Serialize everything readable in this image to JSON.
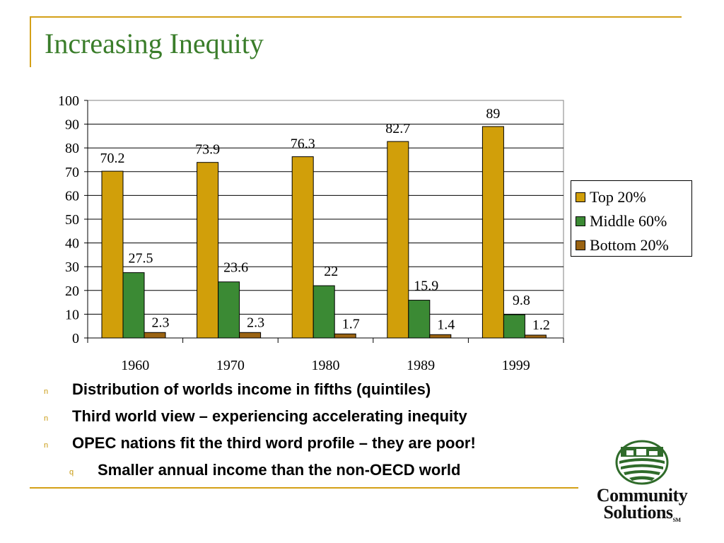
{
  "slide": {
    "title": "Increasing Inequity"
  },
  "colors": {
    "accent_rule": "#d4a017",
    "title": "#3a7d2a",
    "bullet_marker": "#c89a10"
  },
  "chart_data": {
    "type": "bar",
    "categories": [
      "1960",
      "1970",
      "1980",
      "1989",
      "1999"
    ],
    "series": [
      {
        "name": "Top 20%",
        "color": "#d19f0a",
        "values": [
          70.2,
          73.9,
          76.3,
          82.7,
          89
        ]
      },
      {
        "name": "Middle 60%",
        "color": "#3b8a34",
        "values": [
          27.5,
          23.6,
          22,
          15.9,
          9.8
        ]
      },
      {
        "name": "Bottom 20%",
        "color": "#9a6312",
        "values": [
          2.3,
          2.3,
          1.7,
          1.4,
          1.2
        ]
      }
    ],
    "data_labels": [
      [
        "70.2",
        "73.9",
        "76.3",
        "82.7",
        "89"
      ],
      [
        "27.5",
        "23.6",
        "22",
        "15.9",
        "9.8"
      ],
      [
        "2.3",
        "2.3",
        "1.7",
        "1.4",
        "1.2"
      ]
    ],
    "ylim": [
      0,
      100
    ],
    "yticks": [
      0,
      10,
      20,
      30,
      40,
      50,
      60,
      70,
      80,
      90,
      100
    ],
    "grid": true,
    "legend_position": "right"
  },
  "bullets": [
    {
      "marker": "n",
      "text": "Distribution of worlds income in fifths (quintiles)",
      "level": 1
    },
    {
      "marker": "n",
      "text": "Third world view – experiencing accelerating inequity",
      "level": 1
    },
    {
      "marker": "n",
      "text": "OPEC nations fit the third word profile – they are poor!",
      "level": 1
    },
    {
      "marker": "q",
      "text": "Smaller annual income than the non-OECD world",
      "level": 2
    }
  ],
  "logo": {
    "line1": "Community",
    "line2": "Solutions",
    "mark": "SM",
    "icon": "farm-field-emblem-icon"
  }
}
